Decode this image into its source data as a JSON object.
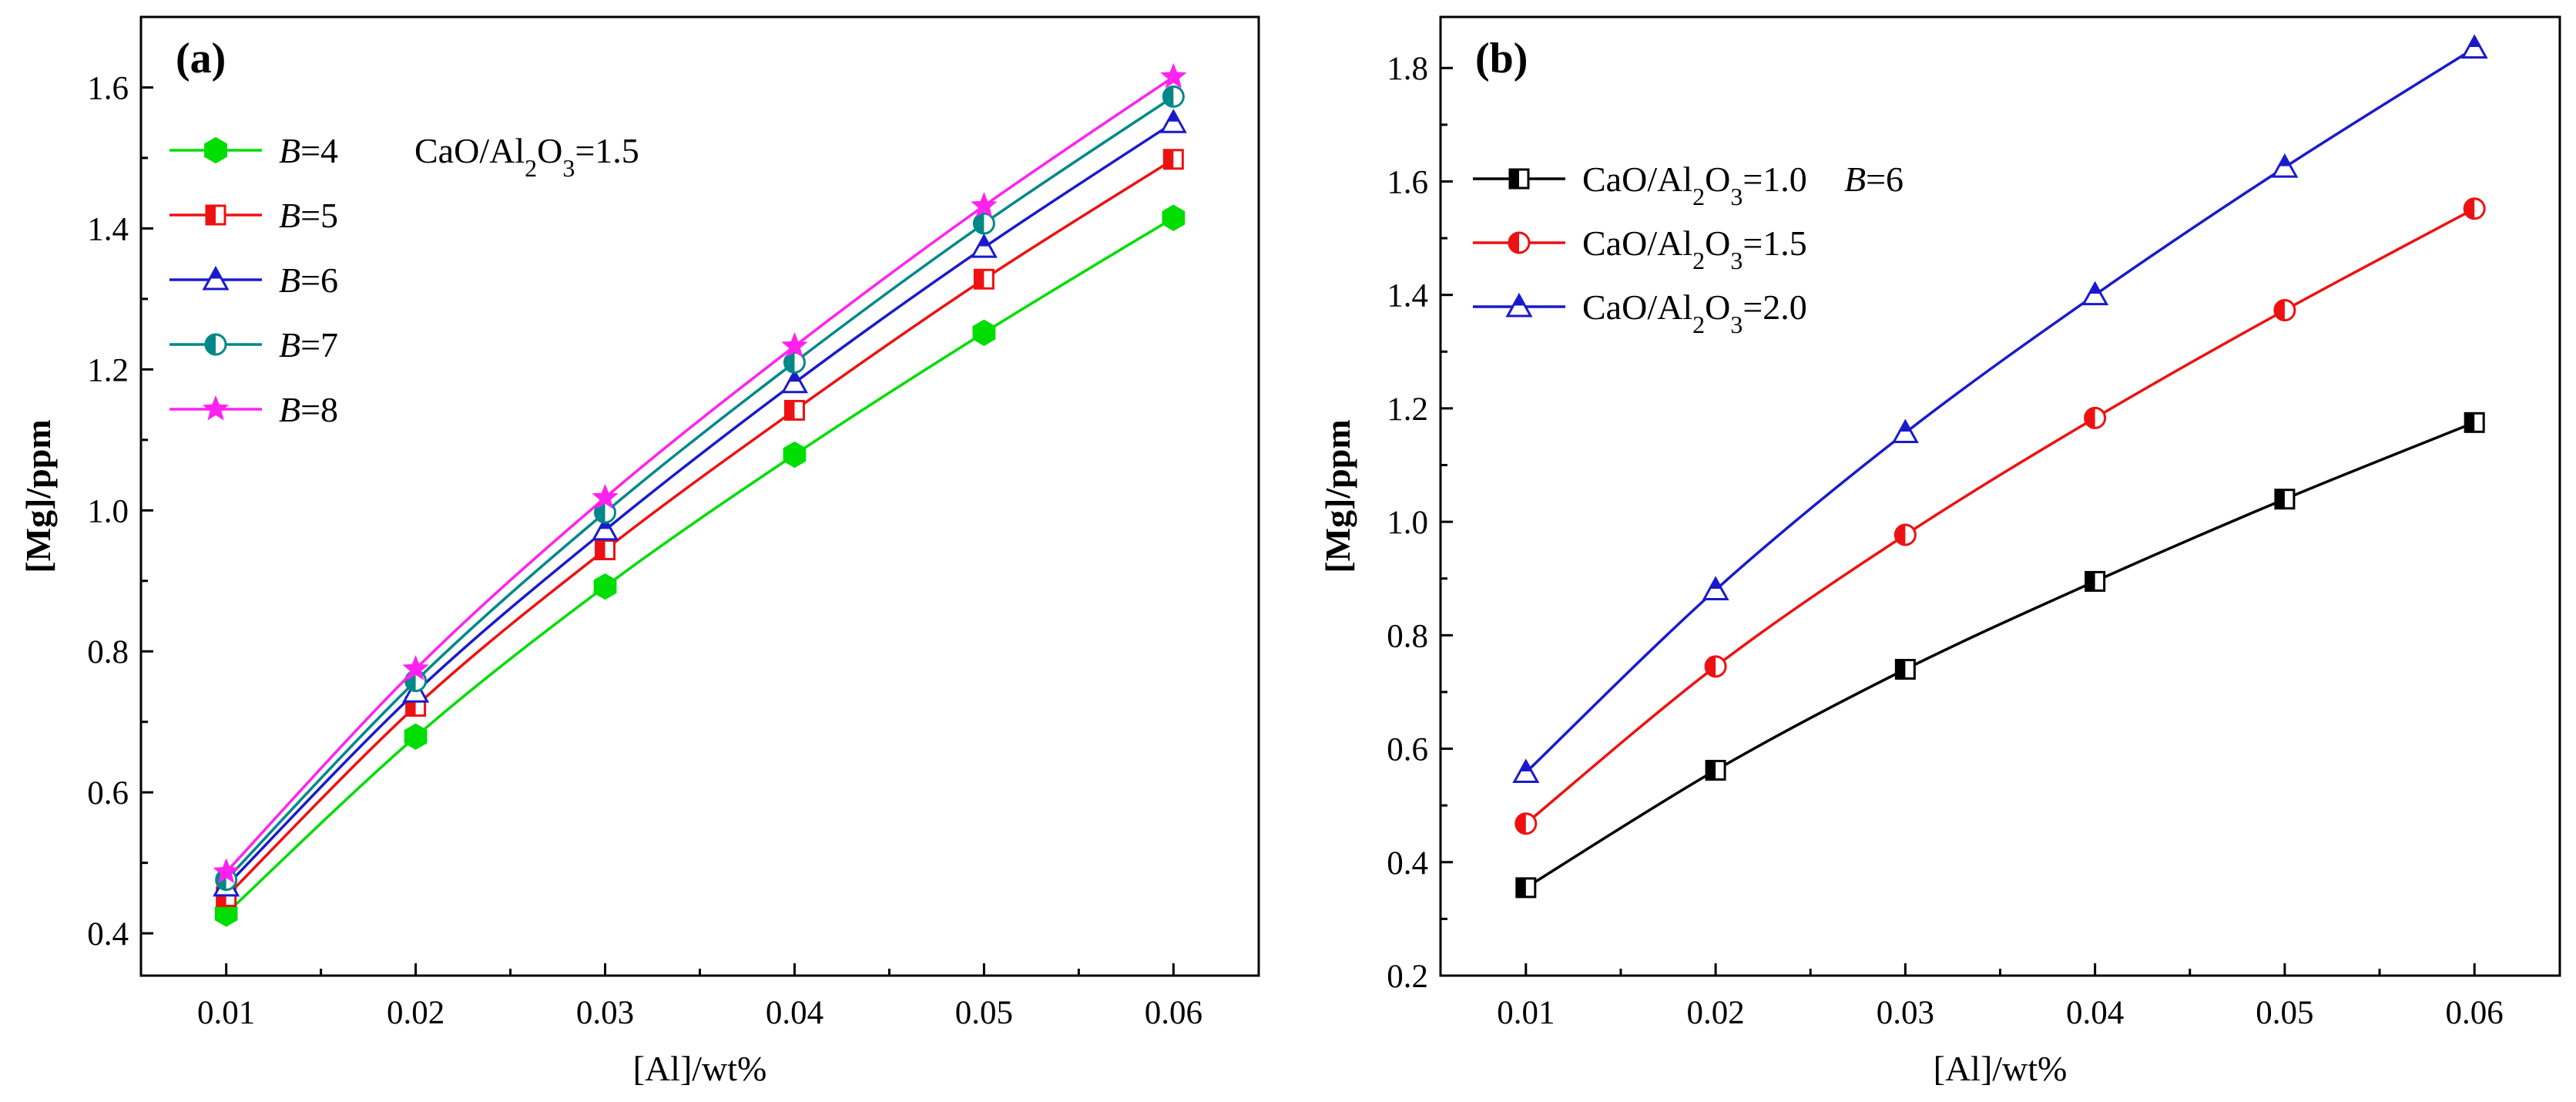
{
  "chart_data": [
    {
      "type": "line",
      "panel_label": "(a)",
      "xlabel": "[Al]/wt%",
      "ylabel": "[Mg]/ppm",
      "x": [
        0.01,
        0.02,
        0.03,
        0.04,
        0.05,
        0.06
      ],
      "x_ticks": [
        "0.01",
        "0.02",
        "0.03",
        "0.04",
        "0.05",
        "0.06"
      ],
      "xlim": [
        0.0055,
        0.0645
      ],
      "ylim": [
        0.34,
        1.7
      ],
      "y_ticks": [
        "0.4",
        "0.6",
        "0.8",
        "1.0",
        "1.2",
        "1.4",
        "1.6"
      ],
      "legend_note": {
        "pre": "CaO/Al",
        "sub1": "2",
        "mid": "O",
        "sub2": "3",
        "post": "=1.5"
      },
      "legend_position": "top-left",
      "series": [
        {
          "name": "B=4",
          "var": "B",
          "eq": "=4",
          "color": "#00dd00",
          "marker": "hexagon",
          "values": [
            0.428,
            0.679,
            0.892,
            1.079,
            1.252,
            1.415
          ]
        },
        {
          "name": "B=5",
          "var": "B",
          "eq": "=5",
          "color": "#ee1111",
          "marker": "square-half",
          "values": [
            0.452,
            0.722,
            0.944,
            1.142,
            1.328,
            1.498
          ]
        },
        {
          "name": "B=6",
          "var": "B",
          "eq": "=6",
          "color": "#1a1acc",
          "marker": "triangle-half",
          "values": [
            0.467,
            0.742,
            0.972,
            1.181,
            1.373,
            1.55
          ]
        },
        {
          "name": "B=7",
          "var": "B",
          "eq": "=7",
          "color": "#008888",
          "marker": "circle-half",
          "values": [
            0.476,
            0.758,
            0.997,
            1.21,
            1.407,
            1.587
          ]
        },
        {
          "name": "B=8",
          "var": "B",
          "eq": "=8",
          "color": "#ff22ee",
          "marker": "star",
          "values": [
            0.487,
            0.775,
            1.018,
            1.233,
            1.432,
            1.615
          ]
        }
      ]
    },
    {
      "type": "line",
      "panel_label": "(b)",
      "xlabel": "[Al]/wt%",
      "ylabel": "[Mg]/ppm",
      "x": [
        0.01,
        0.02,
        0.03,
        0.04,
        0.05,
        0.06
      ],
      "x_ticks": [
        "0.01",
        "0.02",
        "0.03",
        "0.04",
        "0.05",
        "0.06"
      ],
      "xlim": [
        0.0055,
        0.0645
      ],
      "ylim": [
        0.2,
        1.89
      ],
      "y_ticks": [
        "0.2",
        "0.4",
        "0.6",
        "0.8",
        "1.0",
        "1.2",
        "1.4",
        "1.6",
        "1.8"
      ],
      "legend_note": {
        "var": "B",
        "eq": "=6"
      },
      "legend_position": "top-left",
      "series": [
        {
          "name": "CaO/Al2O3=1.0",
          "pre": "CaO/Al",
          "sub1": "2",
          "mid": "O",
          "sub2": "3",
          "post": "=1.0",
          "color": "#000000",
          "marker": "square-half",
          "values": [
            0.355,
            0.562,
            0.74,
            0.895,
            1.04,
            1.175
          ]
        },
        {
          "name": "CaO/Al2O3=1.5",
          "pre": "CaO/Al",
          "sub1": "2",
          "mid": "O",
          "sub2": "3",
          "post": "=1.5",
          "color": "#ee1111",
          "marker": "circle-half",
          "values": [
            0.468,
            0.745,
            0.977,
            1.183,
            1.373,
            1.552
          ]
        },
        {
          "name": "CaO/Al2O3=2.0",
          "pre": "CaO/Al",
          "sub1": "2",
          "mid": "O",
          "sub2": "3",
          "post": "=2.0",
          "color": "#1a1acc",
          "marker": "triangle-half",
          "values": [
            0.558,
            0.88,
            1.157,
            1.4,
            1.625,
            1.835
          ]
        }
      ]
    }
  ]
}
